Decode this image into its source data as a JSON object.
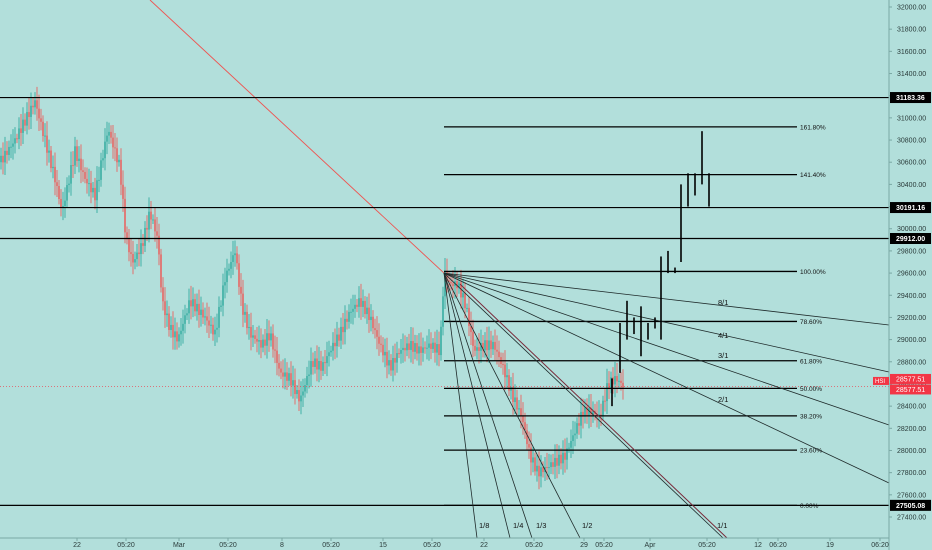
{
  "chart_data": {
    "type": "line",
    "symbol": "HSI",
    "title": "",
    "xlabel": "",
    "ylabel": "",
    "ylim": [
      27310,
      32090
    ],
    "y_ticks": [
      "32000.00",
      "31800.00",
      "31600.00",
      "31400.00",
      "31200.00",
      "31000.00",
      "30800.00",
      "30600.00",
      "30400.00",
      "30200.00",
      "30000.00",
      "29800.00",
      "29600.00",
      "29400.00",
      "29200.00",
      "29000.00",
      "28800.00",
      "28600.00",
      "28400.00",
      "28200.00",
      "28000.00",
      "27800.00",
      "27600.00",
      "27400.00"
    ],
    "x_ticks": [
      "22",
      "05:20",
      "Mar",
      "05:20",
      "8",
      "05:20",
      "15",
      "05:20",
      "22",
      "05:20",
      "29",
      "05:20",
      "Apr",
      "05:20",
      "12",
      "06:20",
      "19",
      "06:20"
    ],
    "horizontal_levels": [
      {
        "value": 31183.36,
        "label": "31183.36"
      },
      {
        "value": 30191.16,
        "label": "30191.16"
      },
      {
        "value": 29912.0,
        "label": "29912.00"
      },
      {
        "value": 27505.08,
        "label": "27505.08"
      }
    ],
    "last_price": {
      "value": 28577.51,
      "label": "28577.51",
      "name": "HSI",
      "color": "#f23645"
    },
    "fib_levels": [
      {
        "ratio": "0.00%",
        "value": 27505
      },
      {
        "ratio": "23.60%",
        "value": 28003
      },
      {
        "ratio": "38.20%",
        "value": 28312
      },
      {
        "ratio": "50.00%",
        "value": 28560
      },
      {
        "ratio": "61.80%",
        "value": 28809
      },
      {
        "ratio": "78.60%",
        "value": 29164
      },
      {
        "ratio": "100.00%",
        "value": 29615
      },
      {
        "ratio": "141.40%",
        "value": 30488
      },
      {
        "ratio": "161.80%",
        "value": 30919
      }
    ],
    "gann_fan": {
      "origin_value": 29600,
      "labels": [
        "8/1",
        "4/1",
        "3/1",
        "2/1",
        "1/8",
        "1/4",
        "1/3",
        "1/2",
        "1/1"
      ]
    },
    "colors": {
      "background": "#b2dfdb",
      "up": "#26a69a",
      "down": "#ef5350",
      "lines": "#000000",
      "trendline": "#ef5350"
    }
  }
}
